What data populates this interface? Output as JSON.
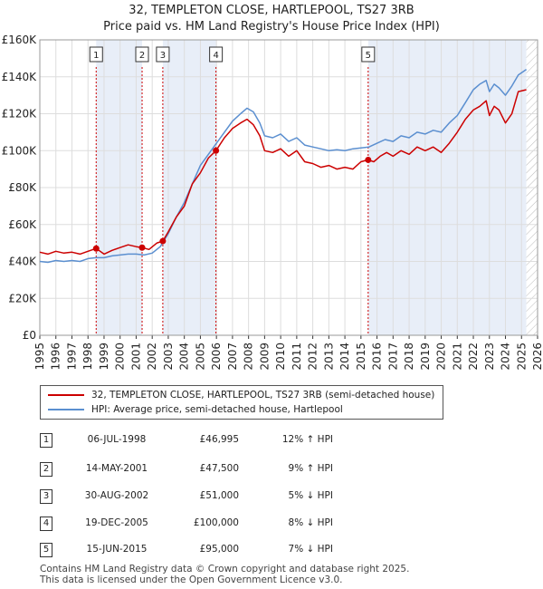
{
  "title_line1": "32, TEMPLETON CLOSE, HARTLEPOOL, TS27 3RB",
  "title_line2": "Price paid vs. HM Land Registry's House Price Index (HPI)",
  "colors": {
    "property": "#cc0000",
    "hpi": "#5b8fd0",
    "shade": "#e8eef8",
    "grid": "#dddddd",
    "marker_line": "#cc0000"
  },
  "legend": {
    "property_label": "32, TEMPLETON CLOSE, HARTLEPOOL, TS27 3RB (semi-detached house)",
    "hpi_label": "HPI: Average price, semi-detached house, Hartlepool"
  },
  "sales": [
    {
      "num": "1",
      "date": "06-JUL-1998",
      "price": "£46,995",
      "hpi": "12% ↑ HPI"
    },
    {
      "num": "2",
      "date": "14-MAY-2001",
      "price": "£47,500",
      "hpi": "9% ↑ HPI"
    },
    {
      "num": "3",
      "date": "30-AUG-2002",
      "price": "£51,000",
      "hpi": "5% ↓ HPI"
    },
    {
      "num": "4",
      "date": "19-DEC-2005",
      "price": "£100,000",
      "hpi": "8% ↓ HPI"
    },
    {
      "num": "5",
      "date": "15-JUN-2015",
      "price": "£95,000",
      "hpi": "7% ↓ HPI"
    }
  ],
  "footer_line1": "Contains HM Land Registry data © Crown copyright and database right 2025.",
  "footer_line2": "This data is licensed under the Open Government Licence v3.0.",
  "chart_data": {
    "type": "line",
    "title": "32, TEMPLETON CLOSE, HARTLEPOOL, TS27 3RB",
    "subtitle": "Price paid vs. HM Land Registry's House Price Index (HPI)",
    "xlabel": "",
    "ylabel": "",
    "xlim": [
      1995,
      2026
    ],
    "ylim": [
      0,
      160000
    ],
    "x_ticks": [
      "1995",
      "1996",
      "1997",
      "1998",
      "1999",
      "2000",
      "2001",
      "2002",
      "2003",
      "2004",
      "2005",
      "2006",
      "2007",
      "2008",
      "2009",
      "2010",
      "2011",
      "2012",
      "2013",
      "2014",
      "2015",
      "2016",
      "2017",
      "2018",
      "2019",
      "2020",
      "2021",
      "2022",
      "2023",
      "2024",
      "2025",
      "2026"
    ],
    "y_ticks": [
      {
        "value": 0,
        "label": "£0"
      },
      {
        "value": 20000,
        "label": "£20K"
      },
      {
        "value": 40000,
        "label": "£40K"
      },
      {
        "value": 60000,
        "label": "£60K"
      },
      {
        "value": 80000,
        "label": "£80K"
      },
      {
        "value": 100000,
        "label": "£100K"
      },
      {
        "value": 120000,
        "label": "£120K"
      },
      {
        "value": 140000,
        "label": "£140K"
      },
      {
        "value": 160000,
        "label": "£160K"
      }
    ],
    "grid": true,
    "shaded_periods": [
      [
        1998.51,
        2001.37
      ],
      [
        2002.66,
        2005.97
      ],
      [
        2015.45,
        2025.3
      ]
    ],
    "hatched_period": [
      2025.3,
      2026
    ],
    "sale_markers": [
      {
        "label": "1",
        "x": 1998.51,
        "y": 46995
      },
      {
        "label": "2",
        "x": 2001.37,
        "y": 47500
      },
      {
        "label": "3",
        "x": 2002.66,
        "y": 51000
      },
      {
        "label": "4",
        "x": 2005.97,
        "y": 100000
      },
      {
        "label": "5",
        "x": 2015.45,
        "y": 95000
      }
    ],
    "series": [
      {
        "name": "32, TEMPLETON CLOSE, HARTLEPOOL, TS27 3RB (semi-detached house)",
        "x": [
          1995,
          1995.5,
          1996,
          1996.5,
          1997,
          1997.5,
          1998,
          1998.51,
          1999,
          1999.5,
          2000,
          2000.5,
          2001,
          2001.37,
          2001.8,
          2002.3,
          2002.66,
          2003,
          2003.5,
          2004,
          2004.5,
          2005,
          2005.5,
          2005.97,
          2006.5,
          2007,
          2007.5,
          2007.9,
          2008.3,
          2008.7,
          2009,
          2009.5,
          2010,
          2010.5,
          2011,
          2011.5,
          2012,
          2012.5,
          2013,
          2013.5,
          2014,
          2014.5,
          2015,
          2015.45,
          2015.8,
          2016.2,
          2016.6,
          2017,
          2017.5,
          2018,
          2018.5,
          2019,
          2019.5,
          2020,
          2020.5,
          2021,
          2021.5,
          2022,
          2022.4,
          2022.8,
          2023,
          2023.3,
          2023.6,
          2024,
          2024.4,
          2024.8,
          2025.3
        ],
        "values": [
          45000,
          44000,
          45500,
          44500,
          45000,
          44000,
          45500,
          46995,
          44000,
          46000,
          47500,
          49000,
          48000,
          47500,
          46500,
          50000,
          51000,
          56000,
          64000,
          70000,
          82000,
          88000,
          96000,
          100000,
          107000,
          112000,
          115000,
          117000,
          114000,
          108000,
          100000,
          99000,
          101000,
          97000,
          100000,
          94000,
          93000,
          91000,
          92000,
          90000,
          91000,
          90000,
          94000,
          95000,
          94000,
          97000,
          99000,
          97000,
          100000,
          98000,
          102000,
          100000,
          102000,
          99000,
          104000,
          110000,
          117000,
          122000,
          124000,
          127000,
          119000,
          124000,
          122000,
          115000,
          120000,
          132000,
          133000
        ]
      },
      {
        "name": "HPI: Average price, semi-detached house, Hartlepool",
        "x": [
          1995,
          1995.5,
          1996,
          1996.5,
          1997,
          1997.5,
          1998,
          1998.5,
          1999,
          1999.5,
          2000,
          2000.5,
          2001,
          2001.5,
          2002,
          2002.5,
          2003,
          2003.5,
          2004,
          2004.5,
          2005,
          2005.5,
          2006,
          2006.5,
          2007,
          2007.5,
          2007.9,
          2008.3,
          2008.7,
          2009,
          2009.5,
          2010,
          2010.5,
          2011,
          2011.5,
          2012,
          2012.5,
          2013,
          2013.5,
          2014,
          2014.5,
          2015,
          2015.5,
          2016,
          2016.5,
          2017,
          2017.5,
          2018,
          2018.5,
          2019,
          2019.5,
          2020,
          2020.5,
          2021,
          2021.5,
          2022,
          2022.4,
          2022.8,
          2023,
          2023.3,
          2023.6,
          2024,
          2024.4,
          2024.8,
          2025.3
        ],
        "values": [
          40000,
          39500,
          40500,
          40000,
          40500,
          40000,
          41500,
          42000,
          42000,
          43000,
          43500,
          44000,
          44000,
          43500,
          44500,
          48000,
          55000,
          64000,
          72000,
          82000,
          92000,
          98000,
          104000,
          110000,
          116000,
          120000,
          123000,
          121000,
          115000,
          108000,
          107000,
          109000,
          105000,
          107000,
          103000,
          102000,
          101000,
          100000,
          100500,
          100000,
          101000,
          101500,
          102000,
          104000,
          106000,
          105000,
          108000,
          107000,
          110000,
          109000,
          111000,
          110000,
          115000,
          119000,
          126000,
          133000,
          136000,
          138000,
          132000,
          136000,
          134000,
          130000,
          135000,
          141000,
          144000
        ]
      }
    ]
  }
}
